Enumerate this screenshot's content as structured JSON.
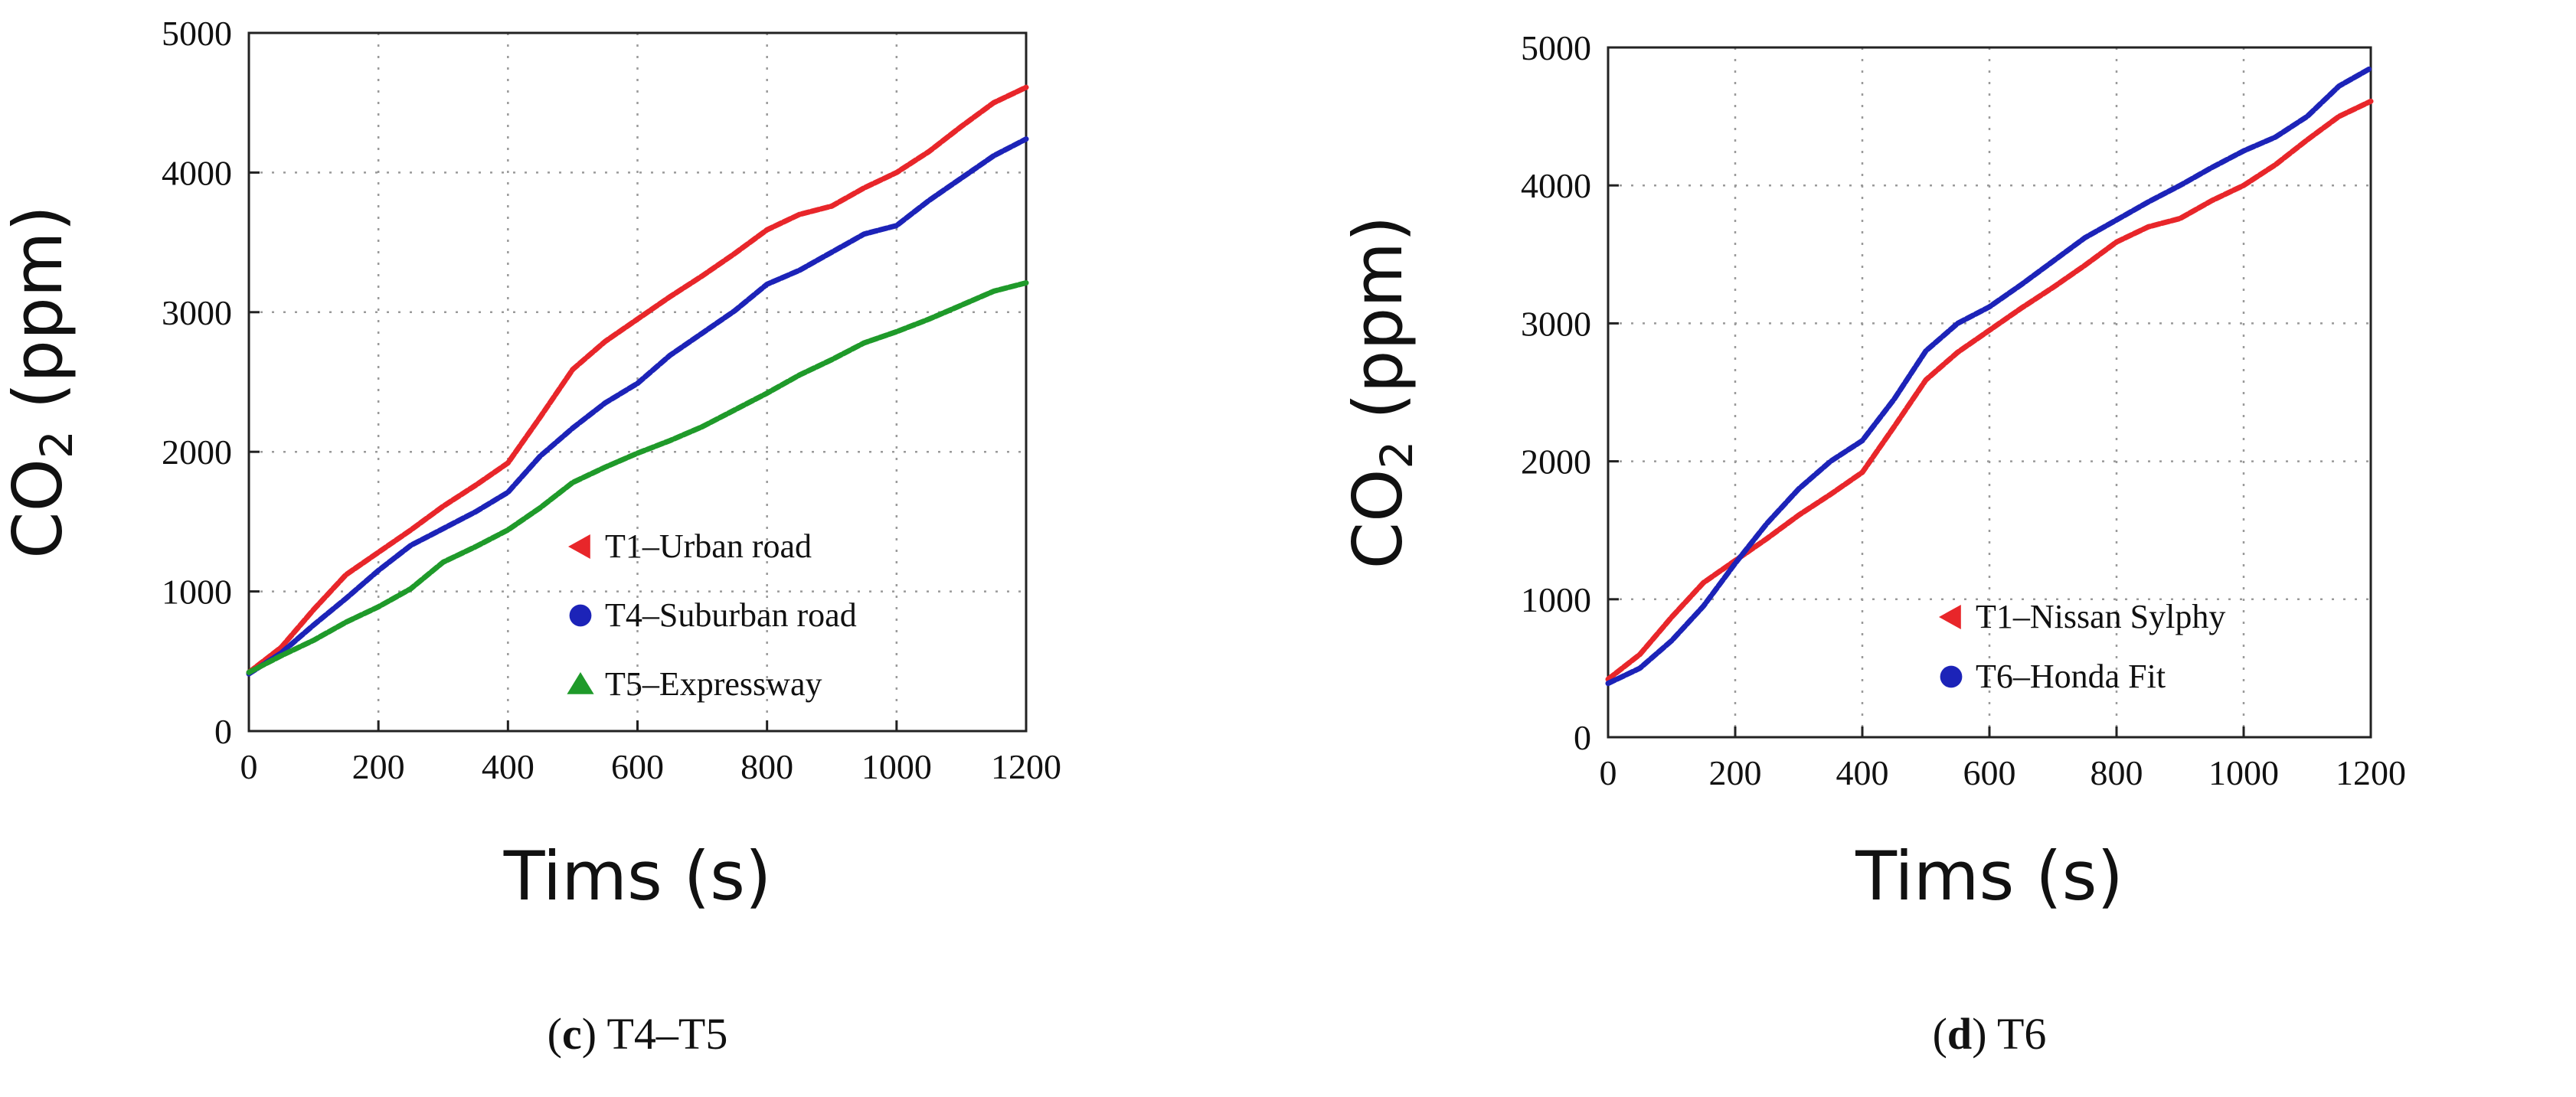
{
  "chart_data": [
    {
      "type": "line",
      "panel": "c",
      "caption_letter": "c",
      "caption_text": "T4–T5",
      "xlabel": "Tims",
      "xunit": "(s)",
      "ylabel_main": "CO",
      "ylabel_sub": "2",
      "yunit": "(ppm)",
      "xlim": [
        0,
        1200
      ],
      "ylim": [
        0,
        5000
      ],
      "xticks": [
        0,
        200,
        400,
        600,
        800,
        1000,
        1200
      ],
      "yticks": [
        0,
        1000,
        2000,
        3000,
        4000,
        5000
      ],
      "grid": true,
      "legend_position": "bottom-right",
      "series": [
        {
          "name": "T1–Urban road",
          "color": "#e8262a",
          "marker": "triangle-left",
          "x": [
            0,
            50,
            100,
            150,
            200,
            250,
            300,
            350,
            400,
            450,
            500,
            550,
            600,
            650,
            700,
            750,
            800,
            850,
            900,
            950,
            1000,
            1050,
            1100,
            1150,
            1200
          ],
          "y": [
            420,
            600,
            870,
            1120,
            1280,
            1440,
            1610,
            1760,
            1920,
            2250,
            2590,
            2790,
            2950,
            3110,
            3260,
            3420,
            3590,
            3700,
            3760,
            3890,
            4000,
            4150,
            4330,
            4500,
            4610
          ]
        },
        {
          "name": "T4–Suburban road",
          "color": "#1c23b8",
          "marker": "circle",
          "x": [
            0,
            50,
            100,
            150,
            200,
            250,
            300,
            350,
            400,
            450,
            500,
            550,
            600,
            650,
            700,
            750,
            800,
            850,
            900,
            950,
            1000,
            1050,
            1100,
            1150,
            1200
          ],
          "y": [
            410,
            560,
            760,
            950,
            1150,
            1330,
            1450,
            1570,
            1710,
            1970,
            2170,
            2350,
            2490,
            2690,
            2850,
            3010,
            3200,
            3300,
            3430,
            3560,
            3620,
            3800,
            3960,
            4120,
            4240
          ]
        },
        {
          "name": "T5–Expressway",
          "color": "#1f9a2a",
          "marker": "triangle-up",
          "x": [
            0,
            50,
            100,
            150,
            200,
            250,
            300,
            350,
            400,
            450,
            500,
            550,
            600,
            650,
            700,
            750,
            800,
            850,
            900,
            950,
            1000,
            1050,
            1100,
            1150,
            1200
          ],
          "y": [
            420,
            540,
            650,
            780,
            890,
            1020,
            1210,
            1320,
            1440,
            1600,
            1780,
            1890,
            1990,
            2080,
            2180,
            2300,
            2420,
            2550,
            2660,
            2780,
            2860,
            2950,
            3050,
            3150,
            3210
          ]
        }
      ]
    },
    {
      "type": "line",
      "panel": "d",
      "caption_letter": "d",
      "caption_text": "T6",
      "xlabel": "Tims",
      "xunit": "(s)",
      "ylabel_main": "CO",
      "ylabel_sub": "2",
      "yunit": "(ppm)",
      "xlim": [
        0,
        1200
      ],
      "ylim": [
        0,
        5000
      ],
      "xticks": [
        0,
        200,
        400,
        600,
        800,
        1000,
        1200
      ],
      "yticks": [
        0,
        1000,
        2000,
        3000,
        4000,
        5000
      ],
      "grid": true,
      "legend_position": "bottom-right",
      "series": [
        {
          "name": "T1–Nissan Sylphy",
          "color": "#e8262a",
          "marker": "triangle-left",
          "x": [
            0,
            50,
            100,
            150,
            200,
            250,
            300,
            350,
            400,
            450,
            500,
            550,
            600,
            650,
            700,
            750,
            800,
            850,
            900,
            950,
            1000,
            1050,
            1100,
            1150,
            1200
          ],
          "y": [
            420,
            600,
            870,
            1120,
            1280,
            1440,
            1610,
            1760,
            1920,
            2250,
            2590,
            2790,
            2950,
            3110,
            3260,
            3420,
            3590,
            3700,
            3760,
            3890,
            4000,
            4150,
            4330,
            4500,
            4610
          ]
        },
        {
          "name": "T6–Honda Fit",
          "color": "#1c23b8",
          "marker": "circle",
          "x": [
            0,
            50,
            100,
            150,
            200,
            250,
            300,
            350,
            400,
            450,
            500,
            550,
            600,
            650,
            700,
            750,
            800,
            850,
            900,
            950,
            1000,
            1050,
            1100,
            1150,
            1200
          ],
          "y": [
            390,
            500,
            700,
            950,
            1260,
            1550,
            1800,
            2000,
            2150,
            2450,
            2800,
            3000,
            3120,
            3280,
            3450,
            3620,
            3750,
            3880,
            4000,
            4130,
            4250,
            4350,
            4500,
            4720,
            4850
          ]
        }
      ]
    }
  ]
}
